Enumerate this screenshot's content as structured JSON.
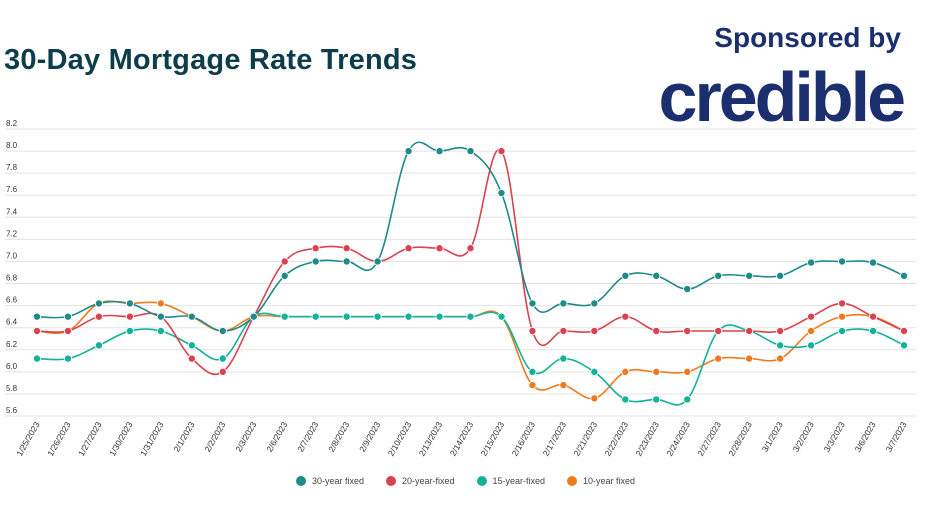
{
  "header": {
    "title": "30-Day Mortgage Rate Trends",
    "sponsor_label": "Sponsored by",
    "brand": "credible"
  },
  "colors": {
    "series": [
      "#1f8a8a",
      "#d9434f",
      "#13b29a",
      "#ee7b1f"
    ],
    "grid": "#e3e3e3",
    "text": "#333333"
  },
  "chart_data": {
    "type": "line",
    "title": "30-Day Mortgage Rate Trends",
    "xlabel": "",
    "ylabel": "",
    "ylim": [
      5.6,
      8.2
    ],
    "yticks": [
      "5.6",
      "5.8",
      "6.0",
      "6.2",
      "6.4",
      "6.6",
      "6.8",
      "7.0",
      "7.2",
      "7.4",
      "7.6",
      "7.8",
      "8.0",
      "8.2"
    ],
    "grid": true,
    "legend_position": "bottom-center",
    "categories": [
      "1/25/2023",
      "1/26/2023",
      "1/27/2023",
      "1/30/2023",
      "1/31/2023",
      "2/1/2023",
      "2/2/2023",
      "2/3/2023",
      "2/6/2023",
      "2/7/2023",
      "2/8/2023",
      "2/9/2023",
      "2/10/2023",
      "2/13/2023",
      "2/14/2023",
      "2/15/2023",
      "2/16/2023",
      "2/17/2023",
      "2/21/2023",
      "2/22/2023",
      "2/23/2023",
      "2/24/2023",
      "2/27/2023",
      "2/28/2023",
      "3/1/2023",
      "3/2/2023",
      "3/3/2023",
      "3/6/2023",
      "3/7/2023"
    ],
    "series": [
      {
        "name": "30-year fixed",
        "values": [
          6.5,
          6.5,
          6.62,
          6.62,
          6.5,
          6.5,
          6.37,
          6.5,
          6.87,
          7.0,
          7.0,
          7.0,
          8.0,
          8.0,
          8.0,
          7.62,
          6.62,
          6.62,
          6.62,
          6.87,
          6.87,
          6.75,
          6.87,
          6.87,
          6.87,
          6.99,
          7.0,
          6.99,
          6.87
        ]
      },
      {
        "name": "20-year-fixed",
        "values": [
          6.37,
          6.37,
          6.5,
          6.5,
          6.5,
          6.12,
          6.0,
          6.5,
          7.0,
          7.12,
          7.12,
          7.0,
          7.12,
          7.12,
          7.12,
          8.0,
          6.37,
          6.37,
          6.37,
          6.5,
          6.37,
          6.37,
          6.37,
          6.37,
          6.37,
          6.5,
          6.62,
          6.5,
          6.37
        ]
      },
      {
        "name": "15-year-fixed",
        "values": [
          6.12,
          6.12,
          6.24,
          6.37,
          6.37,
          6.24,
          6.12,
          6.5,
          6.5,
          6.5,
          6.5,
          6.5,
          6.5,
          6.5,
          6.5,
          6.5,
          6.0,
          6.12,
          6.0,
          5.75,
          5.75,
          5.75,
          6.37,
          6.37,
          6.24,
          6.24,
          6.37,
          6.37,
          6.24
        ]
      },
      {
        "name": "10-year fixed",
        "values": [
          6.37,
          6.37,
          6.62,
          6.62,
          6.62,
          6.5,
          6.37,
          6.5,
          6.5,
          6.5,
          6.5,
          6.5,
          6.5,
          6.5,
          6.5,
          6.5,
          5.88,
          5.88,
          5.76,
          6.0,
          6.0,
          6.0,
          6.12,
          6.12,
          6.12,
          6.37,
          6.5,
          6.5,
          6.37
        ]
      }
    ]
  }
}
